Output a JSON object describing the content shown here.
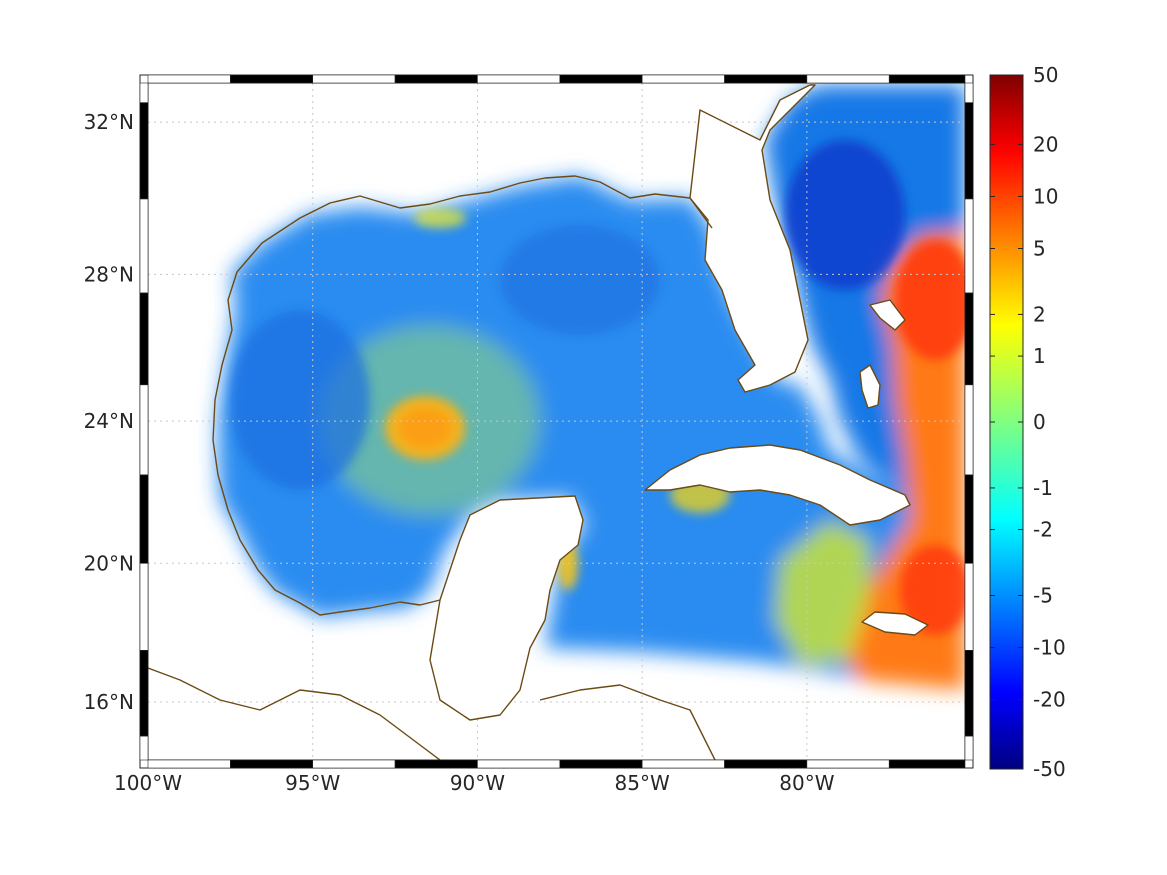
{
  "map": {
    "type": "heatmap",
    "projection": "mercator",
    "lon_range": [
      -100,
      -75.2
    ],
    "lat_range": [
      14.3,
      33.0
    ],
    "grid": true,
    "frame": "black-and-white checkered border",
    "coastline_color": "#6b4a14",
    "lon_ticks": [
      {
        "value": -100,
        "label": "100°W"
      },
      {
        "value": -95,
        "label": "95°W"
      },
      {
        "value": -90,
        "label": "90°W"
      },
      {
        "value": -85,
        "label": "85°W"
      },
      {
        "value": -80,
        "label": "80°W"
      }
    ],
    "lat_ticks": [
      {
        "value": 32,
        "label": "32°N"
      },
      {
        "value": 28,
        "label": "28°N"
      },
      {
        "value": 24,
        "label": "24°N"
      },
      {
        "value": 20,
        "label": "20°N"
      },
      {
        "value": 16,
        "label": "16°N"
      }
    ],
    "colorbar": {
      "colormap": "jet",
      "placement": "right",
      "scale": "symmetric-log",
      "ticks": [
        "50",
        "20",
        "10",
        "5",
        "2",
        "1",
        "0",
        "-1",
        "-2",
        "-5",
        "-10",
        "-20",
        "-50"
      ],
      "tick_fractions": [
        0.0,
        0.1,
        0.175,
        0.25,
        0.345,
        0.405,
        0.5,
        0.595,
        0.655,
        0.75,
        0.825,
        0.9,
        1.0
      ]
    },
    "field_features": [
      {
        "name": "gulf-basin",
        "value": -4
      },
      {
        "name": "loop-current-eddy",
        "lon": -91.8,
        "lat": 23.6,
        "value": 3
      },
      {
        "name": "atlantic-east",
        "value": 8
      },
      {
        "name": "florida-atlantic-low",
        "value": -18
      },
      {
        "name": "caribbean-south",
        "value": 2
      }
    ]
  }
}
